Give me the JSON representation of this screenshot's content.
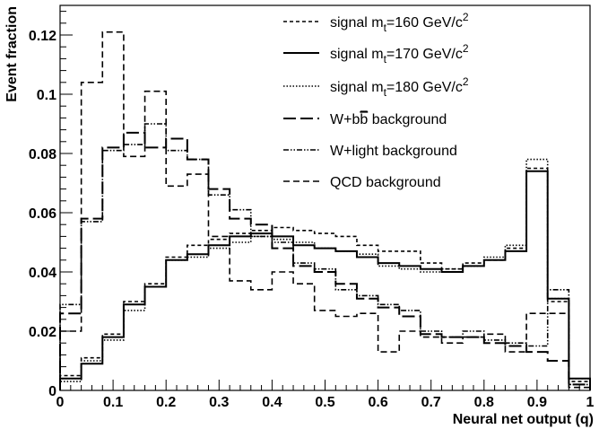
{
  "chart_data": {
    "type": "line",
    "xlabel": "Neural net output (q)",
    "ylabel": "Event fraction",
    "xlim": [
      0,
      1
    ],
    "ylim": [
      0,
      0.13
    ],
    "x_ticks": [
      "0",
      "0.1",
      "0.2",
      "0.3",
      "0.4",
      "0.5",
      "0.6",
      "0.7",
      "0.8",
      "0.9",
      "1"
    ],
    "y_ticks": [
      "0",
      "0.02",
      "0.04",
      "0.06",
      "0.08",
      "0.1",
      "0.12"
    ],
    "bin_edges": [
      0,
      0.04,
      0.08,
      0.12,
      0.16,
      0.2,
      0.24,
      0.28,
      0.32,
      0.36,
      0.4,
      0.44,
      0.48,
      0.52,
      0.56,
      0.6,
      0.64,
      0.68,
      0.72,
      0.76,
      0.8,
      0.84,
      0.88,
      0.92,
      0.96,
      1.0
    ],
    "legend_position": "top-right",
    "series": [
      {
        "id": "sig160",
        "name": "signal m",
        "name_sub": "t",
        "name_rest": "=160 GeV/c",
        "name_sup": "2",
        "dash": "4,3",
        "width": 1.6,
        "values": [
          0.005,
          0.011,
          0.019,
          0.03,
          0.036,
          0.045,
          0.049,
          0.051,
          0.053,
          0.054,
          0.055,
          0.054,
          0.053,
          0.052,
          0.049,
          0.047,
          0.047,
          0.043,
          0.041,
          0.043,
          0.044,
          0.048,
          0.075,
          0.03,
          0.003
        ]
      },
      {
        "id": "sig170",
        "name": "signal m",
        "name_sub": "t",
        "name_rest": "=170 GeV/c",
        "name_sup": "2",
        "dash": "",
        "width": 2.0,
        "values": [
          0.004,
          0.009,
          0.018,
          0.029,
          0.035,
          0.044,
          0.046,
          0.049,
          0.052,
          0.053,
          0.052,
          0.049,
          0.048,
          0.047,
          0.045,
          0.043,
          0.042,
          0.041,
          0.04,
          0.042,
          0.044,
          0.047,
          0.074,
          0.031,
          0.004
        ]
      },
      {
        "id": "sig180",
        "name": "signal m",
        "name_sub": "t",
        "name_rest": "=180 GeV/c",
        "name_sup": "2",
        "dash": "1.5,2",
        "width": 1.6,
        "values": [
          0.003,
          0.01,
          0.017,
          0.027,
          0.035,
          0.044,
          0.045,
          0.048,
          0.05,
          0.052,
          0.051,
          0.05,
          0.048,
          0.047,
          0.046,
          0.042,
          0.041,
          0.04,
          0.041,
          0.042,
          0.045,
          0.049,
          0.078,
          0.031,
          0.004
        ]
      },
      {
        "id": "wbb",
        "name": "W+b",
        "name_rest": " background",
        "bbar": true,
        "dash": "14,5",
        "width": 2.0,
        "values": [
          0.026,
          0.058,
          0.082,
          0.087,
          0.082,
          0.085,
          0.078,
          0.068,
          0.058,
          0.056,
          0.048,
          0.042,
          0.04,
          0.036,
          0.031,
          0.028,
          0.025,
          0.019,
          0.018,
          0.018,
          0.016,
          0.015,
          0.013,
          0.01,
          0.002
        ]
      },
      {
        "id": "wlight",
        "name": "W+light background",
        "dash": "6,2,1.5,2,1.5,2",
        "width": 1.6,
        "values": [
          0.029,
          0.057,
          0.081,
          0.083,
          0.09,
          0.081,
          0.078,
          0.066,
          0.061,
          0.052,
          0.05,
          0.043,
          0.041,
          0.034,
          0.032,
          0.029,
          0.027,
          0.02,
          0.018,
          0.02,
          0.017,
          0.016,
          0.015,
          0.034,
          0.002
        ]
      },
      {
        "id": "qcd",
        "name": "QCD background",
        "dash": "7,4",
        "width": 1.6,
        "values": [
          0.02,
          0.104,
          0.121,
          0.079,
          0.101,
          0.069,
          0.073,
          0.052,
          0.037,
          0.034,
          0.04,
          0.036,
          0.027,
          0.025,
          0.026,
          0.013,
          0.02,
          0.018,
          0.016,
          0.018,
          0.019,
          0.013,
          0.026,
          0.026,
          0.001
        ]
      }
    ]
  }
}
